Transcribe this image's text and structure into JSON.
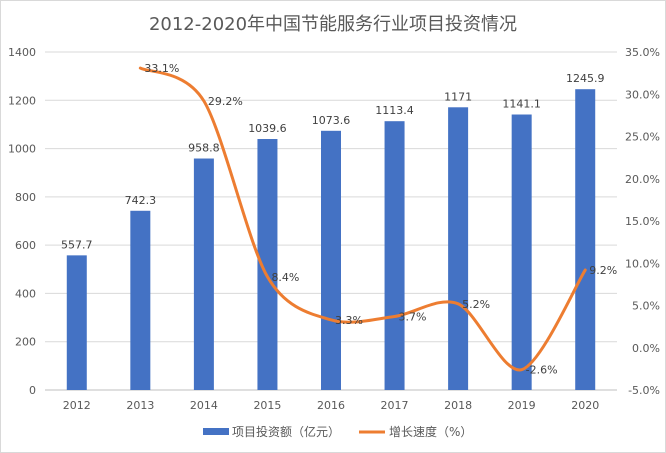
{
  "chart_data": {
    "type": "bar+line",
    "title": "2012-2020年中国节能服务行业项目投资情况",
    "categories": [
      "2012",
      "2013",
      "2014",
      "2015",
      "2016",
      "2017",
      "2018",
      "2019",
      "2020"
    ],
    "series": [
      {
        "name": "项目投资额（亿元）",
        "type": "bar",
        "axis": "left",
        "color": "#4472c4",
        "values": [
          557.7,
          742.3,
          958.8,
          1039.6,
          1073.6,
          1113.4,
          1171,
          1141.1,
          1245.9
        ],
        "labels": [
          "557.7",
          "742.3",
          "958.8",
          "1039.6",
          "1073.6",
          "1113.4",
          "1171",
          "1141.1",
          "1245.9"
        ]
      },
      {
        "name": "增长速度（%）",
        "type": "line",
        "axis": "right",
        "color": "#ed7d31",
        "smooth": true,
        "values": [
          null,
          33.1,
          29.2,
          8.4,
          3.3,
          3.7,
          5.2,
          -2.6,
          9.2
        ],
        "labels": [
          "",
          "33.1%",
          "29.2%",
          "8.4%",
          "3.3%",
          "3.7%",
          "5.2%",
          "-2.6%",
          "9.2%"
        ]
      }
    ],
    "y_left": {
      "range": [
        0,
        1400
      ],
      "ticks": [
        "0",
        "200",
        "400",
        "600",
        "800",
        "1000",
        "1200",
        "1400"
      ]
    },
    "y_right": {
      "range": [
        -5,
        35
      ],
      "ticks": [
        "-5.0%",
        "0.0%",
        "5.0%",
        "10.0%",
        "15.0%",
        "20.0%",
        "25.0%",
        "30.0%",
        "35.0%"
      ]
    },
    "grid": true,
    "legend": "bottom"
  }
}
